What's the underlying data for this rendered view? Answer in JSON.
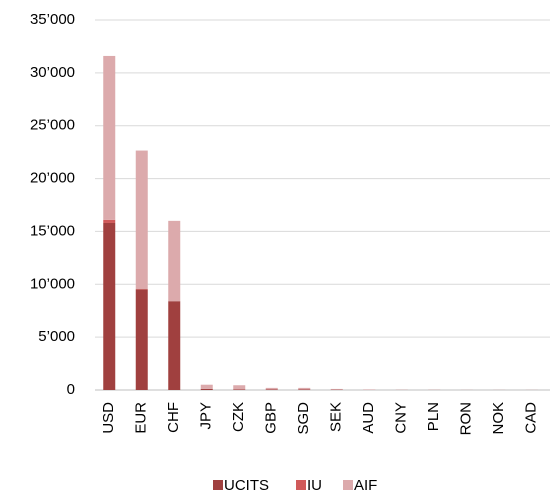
{
  "chart_data": {
    "type": "bar",
    "stacked": true,
    "categories": [
      "USD",
      "EUR",
      "CHF",
      "JPY",
      "CZK",
      "GBP",
      "SGD",
      "SEK",
      "AUD",
      "CNY",
      "PLN",
      "RON",
      "NOK",
      "CAD"
    ],
    "series": [
      {
        "name": "UCITS",
        "color": "#a0403f",
        "values": [
          15800,
          9500,
          8400,
          100,
          50,
          50,
          50,
          30,
          20,
          10,
          10,
          5,
          5,
          5
        ]
      },
      {
        "name": "IU",
        "color": "#d05a5a",
        "values": [
          300,
          50,
          0,
          0,
          0,
          0,
          0,
          0,
          0,
          0,
          0,
          0,
          0,
          0
        ]
      },
      {
        "name": "AIF",
        "color": "#dcaaac",
        "values": [
          15500,
          13100,
          7600,
          400,
          400,
          150,
          150,
          70,
          30,
          10,
          10,
          5,
          5,
          5
        ]
      }
    ],
    "ylim": [
      0,
      35000
    ],
    "yticks": [
      0,
      {
        "value": 5000,
        "label": "5’000"
      },
      {
        "value": 10000,
        "label": "10’000"
      },
      {
        "value": 15000,
        "label": "15’000"
      },
      {
        "value": 20000,
        "label": "20’000"
      },
      {
        "value": 25000,
        "label": "25’000"
      },
      {
        "value": 30000,
        "label": "30’000"
      },
      {
        "value": 35000,
        "label": "35’000"
      }
    ],
    "grid": true,
    "legend": "bottom"
  }
}
